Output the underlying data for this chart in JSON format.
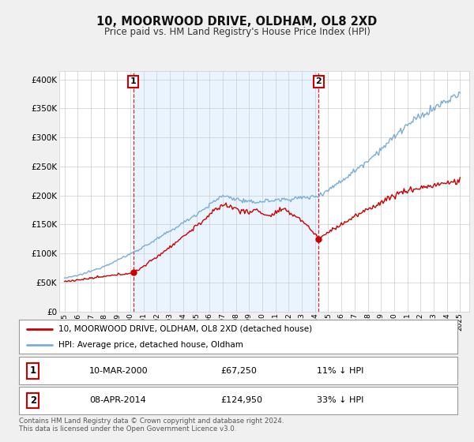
{
  "title": "10, MOORWOOD DRIVE, OLDHAM, OL8 2XD",
  "subtitle": "Price paid vs. HM Land Registry's House Price Index (HPI)",
  "ylabel_values": [
    0,
    50000,
    100000,
    150000,
    200000,
    250000,
    300000,
    350000,
    400000
  ],
  "ylim": [
    0,
    415000
  ],
  "line1_color": "#cc0000",
  "line2_color": "#7aaed6",
  "annotation1_date": "10-MAR-2000",
  "annotation1_price": "£67,250",
  "annotation1_hpi": "11% ↓ HPI",
  "annotation2_date": "08-APR-2014",
  "annotation2_price": "£124,950",
  "annotation2_hpi": "33% ↓ HPI",
  "legend1_label": "10, MOORWOOD DRIVE, OLDHAM, OL8 2XD (detached house)",
  "legend2_label": "HPI: Average price, detached house, Oldham",
  "footer": "Contains HM Land Registry data © Crown copyright and database right 2024.\nThis data is licensed under the Open Government Licence v3.0.",
  "background_color": "#f0f0f0",
  "plot_background": "#ffffff",
  "shade_color": "#ddeeff",
  "grid_color": "#cccccc",
  "sale1_year": 2000.21,
  "sale1_price": 67250,
  "sale2_year": 2014.28,
  "sale2_price": 124950
}
